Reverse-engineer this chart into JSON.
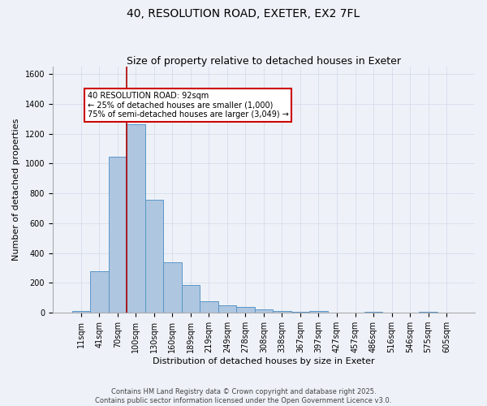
{
  "title_line1": "40, RESOLUTION ROAD, EXETER, EX2 7FL",
  "title_line2": "Size of property relative to detached houses in Exeter",
  "xlabel": "Distribution of detached houses by size in Exeter",
  "ylabel": "Number of detached properties",
  "bar_labels": [
    "11sqm",
    "41sqm",
    "70sqm",
    "100sqm",
    "130sqm",
    "160sqm",
    "189sqm",
    "219sqm",
    "249sqm",
    "278sqm",
    "308sqm",
    "338sqm",
    "367sqm",
    "397sqm",
    "427sqm",
    "457sqm",
    "486sqm",
    "516sqm",
    "546sqm",
    "575sqm",
    "605sqm"
  ],
  "bar_values": [
    10,
    280,
    1045,
    1265,
    760,
    340,
    185,
    80,
    48,
    37,
    25,
    14,
    5,
    10,
    2,
    0,
    5,
    0,
    0,
    5,
    2
  ],
  "bar_color": "#aec6e0",
  "bar_edge_color": "#5a96c8",
  "vline_color": "#aa0000",
  "annotation_text": "40 RESOLUTION ROAD: 92sqm\n← 25% of detached houses are smaller (1,000)\n75% of semi-detached houses are larger (3,049) →",
  "annotation_box_color": "#ffffff",
  "annotation_box_edge": "#cc0000",
  "ylim": [
    0,
    1650
  ],
  "yticks": [
    0,
    200,
    400,
    600,
    800,
    1000,
    1200,
    1400,
    1600
  ],
  "grid_color": "#d0d8e8",
  "background_color": "#eef2f8",
  "footer_line1": "Contains HM Land Registry data © Crown copyright and database right 2025.",
  "footer_line2": "Contains public sector information licensed under the Open Government Licence v3.0.",
  "title_fontsize": 10,
  "subtitle_fontsize": 9,
  "label_fontsize": 8,
  "tick_fontsize": 7,
  "annotation_fontsize": 7,
  "footer_fontsize": 6
}
